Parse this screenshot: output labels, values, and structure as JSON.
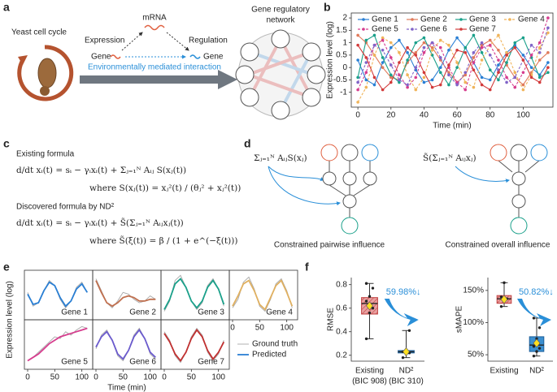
{
  "panel_labels": [
    "a",
    "b",
    "c",
    "d",
    "e",
    "f"
  ],
  "diagram_a": {
    "cycle_label": "Yeast cell cycle",
    "mrna": "mRNA",
    "expression": "Expression",
    "regulation": "Regulation",
    "genes": [
      "Gene",
      "Gene"
    ],
    "interaction": "Environmentally mediated interaction",
    "network_title": [
      "Gene regulatory",
      "network"
    ]
  },
  "formulas_c": {
    "existing_title": "Existing formula",
    "existing": "d/dt xᵢ(t) = sᵢ − γᵢxᵢ(t) + Σⱼ₌₁ᴺ Aᵢⱼ S(xⱼ(t))",
    "existing_where": "where S(xⱼ(t)) = xⱼ²(t) / (θⱼ² + xⱼ²(t))",
    "discovered_title": "Discovered formula by ND²",
    "discovered": "d/dt xᵢ(t) = sᵢ − γᵢxᵢ(t) + S̃(Σⱼ₌₁ᴺ Aᵢⱼxⱼ(t))",
    "discovered_where": "where S̃(ξ(t)) = β / (1 + e^(−ξ(t)))"
  },
  "diagram_d": {
    "pairwise_formula": "Σⱼ₌₁ᴺ AᵢⱼS(xⱼ)",
    "overall_formula": "S̃(Σⱼ₌₁ᴺ Aᵢⱼxⱼ)",
    "pairwise_caption": "Constrained pairwise influence",
    "overall_caption": "Constrained overall influence"
  },
  "chart_data": [
    {
      "type": "line",
      "xlabel": "Time (min)",
      "ylabel": "Expression level (log)",
      "x": [
        0,
        5,
        10,
        15,
        20,
        25,
        30,
        35,
        40,
        45,
        50,
        55,
        60,
        65,
        70,
        75,
        80,
        85,
        90,
        95,
        100,
        105,
        110,
        115
      ],
      "xlim": [
        -4,
        118
      ],
      "xticks": [
        0,
        20,
        40,
        60,
        80,
        100
      ],
      "ylim": [
        -1.6,
        2.2
      ],
      "yticks": [
        -1,
        -0.5,
        0,
        0.5,
        1,
        1.5,
        2
      ],
      "series": [
        {
          "name": "Gene 1",
          "color": "#2a7fd4",
          "linestyle": "solid",
          "values": [
            0.3,
            -0.5,
            -0.7,
            0.2,
            0.8,
            1.1,
            0.6,
            -0.1,
            -0.6,
            -0.5,
            0.0,
            0.7,
            1.2,
            0.8,
            0.2,
            -0.4,
            -0.5,
            0.1,
            0.6,
            0.9,
            0.5,
            0.0,
            -0.3,
            0.2
          ]
        },
        {
          "name": "Gene 2",
          "color": "#e07a5a",
          "linestyle": "solid",
          "values": [
            1.3,
            1.0,
            0.5,
            0.0,
            -0.4,
            -0.5,
            0.2,
            0.6,
            1.0,
            0.8,
            0.3,
            -0.2,
            -0.6,
            -0.3,
            0.4,
            0.9,
            1.1,
            0.7,
            0.1,
            -0.4,
            -0.7,
            -0.2,
            0.3,
            0.6
          ]
        },
        {
          "name": "Gene 3",
          "color": "#1aa08a",
          "linestyle": "solid",
          "values": [
            -0.4,
            1.1,
            1.3,
            0.4,
            -0.3,
            -0.6,
            0.3,
            1.0,
            1.2,
            0.5,
            -0.2,
            -0.7,
            0.0,
            0.8,
            1.3,
            0.6,
            -0.1,
            -0.5,
            0.2,
            1.0,
            1.2,
            0.4,
            -0.4,
            -0.2
          ]
        },
        {
          "name": "Gene 4",
          "color": "#f0b45a",
          "linestyle": "dashed",
          "values": [
            -1.4,
            -0.8,
            0.5,
            1.2,
            1.0,
            0.6,
            -0.3,
            -0.9,
            -0.4,
            0.7,
            1.1,
            0.9,
            0.2,
            -0.6,
            -0.8,
            0.3,
            0.9,
            1.3,
            0.6,
            -0.2,
            -0.9,
            -0.3,
            0.8,
            1.4
          ]
        },
        {
          "name": "Gene 5",
          "color": "#d63d8e",
          "linestyle": "dashed",
          "values": [
            -0.9,
            -0.2,
            0.9,
            1.1,
            0.4,
            -0.3,
            -0.8,
            -0.4,
            0.6,
            1.0,
            0.8,
            0.0,
            -0.6,
            -0.9,
            0.2,
            0.8,
            0.9,
            0.3,
            -0.4,
            -0.8,
            -0.2,
            0.5,
            1.0,
            2.0
          ]
        },
        {
          "name": "Gene 6",
          "color": "#8064c8",
          "linestyle": "dashed",
          "values": [
            -0.6,
            0.2,
            0.9,
            0.7,
            0.1,
            -0.5,
            -0.7,
            0.0,
            0.8,
            1.0,
            0.4,
            -0.3,
            -0.7,
            -0.2,
            0.6,
            1.0,
            0.5,
            -0.1,
            -0.6,
            -0.4,
            0.3,
            0.9,
            0.6,
            1.6
          ]
        },
        {
          "name": "Gene 7",
          "color": "#d23a3a",
          "linestyle": "solid",
          "values": [
            0.9,
            0.4,
            -0.4,
            -0.9,
            -0.6,
            0.2,
            0.8,
            0.5,
            -0.2,
            -0.8,
            -0.7,
            0.1,
            0.7,
            0.6,
            -0.1,
            -0.7,
            -0.9,
            -0.2,
            0.5,
            0.8,
            0.3,
            -0.4,
            -0.6,
            0.0
          ]
        }
      ]
    },
    {
      "type": "small_multiples",
      "xlabel": "Time (min)",
      "ylabel": "Expression level (log)",
      "x": [
        0,
        10,
        20,
        30,
        40,
        50,
        60,
        70,
        80,
        90,
        100,
        110
      ],
      "xlim": [
        -6,
        120
      ],
      "xticks": [
        0,
        50,
        100
      ],
      "ylim": [
        -1.4,
        1.5
      ],
      "panels": [
        {
          "name": "Gene 1",
          "series": [
            {
              "name": "Ground truth",
              "color": "#a8a8a8",
              "values": [
                0.2,
                -0.6,
                -0.4,
                0.3,
                0.9,
                0.6,
                -0.2,
                -0.7,
                -0.3,
                0.5,
                0.8,
                0.2
              ]
            },
            {
              "name": "Predicted",
              "color": "#2a7fd4",
              "values": [
                0.1,
                -0.5,
                -0.4,
                0.3,
                0.8,
                0.6,
                -0.1,
                -0.6,
                -0.3,
                0.4,
                0.7,
                0.2
              ]
            }
          ]
        },
        {
          "name": "Gene 2",
          "series": [
            {
              "name": "Ground truth",
              "color": "#a8a8a8",
              "values": [
                1.0,
                0.3,
                -0.4,
                -0.7,
                -0.3,
                0.2,
                0.1,
                -0.2,
                -0.4,
                -0.3,
                0.0,
                -0.2
              ]
            },
            {
              "name": "Predicted",
              "color": "#c0704f",
              "values": [
                0.9,
                0.2,
                -0.4,
                -0.6,
                -0.4,
                -0.1,
                0.0,
                -0.1,
                -0.3,
                -0.3,
                -0.2,
                -0.2
              ]
            }
          ]
        },
        {
          "name": "Gene 3",
          "series": [
            {
              "name": "Ground truth",
              "color": "#a8a8a8",
              "values": [
                -0.9,
                -0.3,
                0.9,
                1.2,
                0.5,
                -0.3,
                -0.8,
                -0.4,
                0.6,
                1.0,
                0.4,
                -0.6
              ]
            },
            {
              "name": "Predicted",
              "color": "#1aa08a",
              "values": [
                -0.8,
                -0.2,
                0.7,
                1.0,
                0.5,
                -0.3,
                -0.7,
                -0.3,
                0.5,
                0.9,
                0.4,
                -0.5
              ]
            }
          ]
        },
        {
          "name": "Gene 4",
          "series": [
            {
              "name": "Ground truth",
              "color": "#a8a8a8",
              "values": [
                -0.7,
                -0.2,
                0.8,
                1.1,
                0.4,
                -0.6,
                -0.9,
                -0.2,
                0.7,
                1.0,
                0.3,
                -0.7
              ]
            },
            {
              "name": "Predicted",
              "color": "#e0b060",
              "values": [
                -0.6,
                0.0,
                0.7,
                0.9,
                0.3,
                -0.5,
                -0.8,
                -0.1,
                0.6,
                0.9,
                0.2,
                -0.6
              ]
            }
          ]
        },
        {
          "name": "Gene 5",
          "series": [
            {
              "name": "Ground truth",
              "color": "#a8a8a8",
              "values": [
                -0.9,
                -0.7,
                -0.4,
                -0.1,
                0.2,
                0.5,
                0.4,
                0.8,
                0.6,
                0.9,
                1.1,
                1.0
              ]
            },
            {
              "name": "Predicted",
              "color": "#d63d8e",
              "values": [
                -0.9,
                -0.7,
                -0.5,
                -0.2,
                0.1,
                0.3,
                0.5,
                0.6,
                0.7,
                0.8,
                0.9,
                1.0
              ]
            }
          ]
        },
        {
          "name": "Gene 6",
          "series": [
            {
              "name": "Ground truth",
              "color": "#a8a8a8",
              "values": [
                -0.2,
                0.6,
                0.9,
                0.3,
                -0.6,
                -0.9,
                -0.3,
                0.6,
                1.0,
                0.4,
                -0.5,
                -0.8
              ]
            },
            {
              "name": "Predicted",
              "color": "#6a5acd",
              "values": [
                -0.1,
                0.5,
                0.8,
                0.3,
                -0.5,
                -0.8,
                -0.3,
                0.5,
                0.9,
                0.4,
                -0.4,
                -0.7
              ]
            }
          ]
        },
        {
          "name": "Gene 7",
          "series": [
            {
              "name": "Ground truth",
              "color": "#a8a8a8",
              "values": [
                0.8,
                0.3,
                -0.6,
                -1.0,
                -0.4,
                0.5,
                1.0,
                0.6,
                -0.4,
                -0.9,
                -0.5,
                0.3
              ]
            },
            {
              "name": "Predicted",
              "color": "#c03030",
              "values": [
                0.7,
                0.2,
                -0.5,
                -0.9,
                -0.4,
                0.4,
                0.9,
                0.5,
                -0.3,
                -0.8,
                -0.4,
                0.2
              ]
            }
          ]
        }
      ]
    },
    {
      "type": "box",
      "ylabel": "RMSE",
      "annotation": "59.98%↓",
      "categories": [
        "Existing",
        "ND²"
      ],
      "category_sublabels": [
        "(BIC 908)",
        "(BIC 310)"
      ],
      "ylim": [
        0.15,
        0.86
      ],
      "yticks": [
        0.2,
        0.4,
        0.6,
        0.8
      ],
      "boxes": [
        {
          "whisker_low": 0.34,
          "q1": 0.55,
          "median": 0.64,
          "q3": 0.69,
          "whisker_high": 0.81,
          "mean": 0.62,
          "color": "#e8a0a0",
          "edge": "#c04040",
          "hatch": true,
          "points": [
            0.34,
            0.56,
            0.6,
            0.66,
            0.7,
            0.77,
            0.81
          ]
        },
        {
          "whisker_low": 0.18,
          "q1": 0.22,
          "median": 0.23,
          "q3": 0.24,
          "whisker_high": 0.41,
          "mean": 0.23,
          "color": "#3a8fd0",
          "edge": "#1e5f9a",
          "hatch": false,
          "points": [
            0.18,
            0.21,
            0.22,
            0.23,
            0.24,
            0.41
          ]
        }
      ]
    },
    {
      "type": "box",
      "ylabel": "sMAPE",
      "annotation": "50.82%↓",
      "categories": [
        "Existing",
        "ND²"
      ],
      "ylim": [
        40,
        170
      ],
      "yticks": [
        {
          "value": 50,
          "label": "50%"
        },
        {
          "value": 100,
          "label": "100%"
        },
        {
          "value": 150,
          "label": "150%"
        }
      ],
      "boxes": [
        {
          "whisker_low": 125,
          "q1": 130,
          "median": 137,
          "q3": 142,
          "whisker_high": 162,
          "mean": 136,
          "color": "#e8a0a0",
          "edge": "#c04040",
          "hatch": true,
          "points": [
            125,
            133,
            137,
            140,
            162
          ]
        },
        {
          "whisker_low": 48,
          "q1": 55,
          "median": 65,
          "q3": 78,
          "whisker_high": 107,
          "mean": 68,
          "color": "#3a8fd0",
          "edge": "#1e5f9a",
          "hatch": false,
          "points": [
            48,
            55,
            60,
            63,
            75,
            92,
            107
          ]
        }
      ]
    }
  ]
}
